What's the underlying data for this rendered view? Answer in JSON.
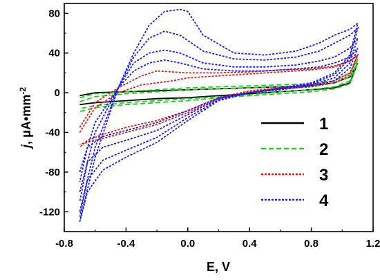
{
  "chart_data": {
    "type": "line",
    "title": "",
    "xlabel": "E, V",
    "ylabel_parts": {
      "italic": "j",
      "rest": ", μA•mm",
      "sup": "-2"
    },
    "xlim": [
      -0.8,
      1.2
    ],
    "ylim": [
      -140,
      90
    ],
    "x_ticks": [
      "-0.8",
      "-0.4",
      "0.0",
      "0.4",
      "0.8",
      "1.2"
    ],
    "x_tick_values": [
      -0.8,
      -0.4,
      0.0,
      0.4,
      0.8,
      1.2
    ],
    "y_ticks": [
      "80",
      "40",
      "0",
      "-40",
      "-80",
      "-120"
    ],
    "y_tick_values": [
      80,
      40,
      0,
      -40,
      -80,
      -120
    ],
    "grid": false,
    "legend_position": "bottom-right",
    "series": [
      {
        "name": "1",
        "color": "#000000",
        "dash": "solid",
        "cycles": [
          {
            "anodic": [
              [
                -0.7,
                -3
              ],
              [
                -0.6,
                0
              ],
              [
                -0.4,
                1
              ],
              [
                -0.2,
                2
              ],
              [
                0.0,
                3
              ],
              [
                0.2,
                4
              ],
              [
                0.4,
                5
              ],
              [
                0.6,
                6
              ],
              [
                0.8,
                7
              ],
              [
                0.95,
                10
              ],
              [
                1.05,
                16
              ],
              [
                1.1,
                30
              ]
            ],
            "cathodic": [
              [
                1.1,
                30
              ],
              [
                1.05,
                10
              ],
              [
                0.95,
                5
              ],
              [
                0.8,
                3
              ],
              [
                0.6,
                1
              ],
              [
                0.4,
                -1
              ],
              [
                0.2,
                -3
              ],
              [
                0.0,
                -5
              ],
              [
                -0.2,
                -6
              ],
              [
                -0.4,
                -8
              ],
              [
                -0.6,
                -10
              ],
              [
                -0.7,
                -12
              ]
            ]
          }
        ]
      },
      {
        "name": "2",
        "color": "#22cc22",
        "dash": "dashed",
        "cycles": [
          {
            "anodic": [
              [
                -0.7,
                -5
              ],
              [
                -0.6,
                -1
              ],
              [
                -0.4,
                1
              ],
              [
                -0.2,
                3
              ],
              [
                0.0,
                5
              ],
              [
                0.2,
                6
              ],
              [
                0.4,
                7
              ],
              [
                0.6,
                8
              ],
              [
                0.8,
                9
              ],
              [
                0.95,
                12
              ],
              [
                1.05,
                20
              ],
              [
                1.1,
                34
              ]
            ],
            "cathodic": [
              [
                1.1,
                34
              ],
              [
                1.05,
                12
              ],
              [
                0.95,
                6
              ],
              [
                0.8,
                3
              ],
              [
                0.6,
                1
              ],
              [
                0.4,
                -2
              ],
              [
                0.2,
                -4
              ],
              [
                0.0,
                -6
              ],
              [
                -0.2,
                -8
              ],
              [
                -0.4,
                -10
              ],
              [
                -0.6,
                -13
              ],
              [
                -0.7,
                -16
              ]
            ]
          },
          {
            "anodic": [
              [
                -0.7,
                -9
              ],
              [
                -0.6,
                -4
              ],
              [
                -0.4,
                -1
              ],
              [
                -0.2,
                1
              ],
              [
                0.0,
                3
              ],
              [
                0.2,
                4
              ],
              [
                0.4,
                5
              ],
              [
                0.6,
                6
              ],
              [
                0.8,
                7
              ],
              [
                0.95,
                10
              ],
              [
                1.05,
                16
              ],
              [
                1.1,
                30
              ]
            ],
            "cathodic": [
              [
                1.1,
                30
              ],
              [
                1.05,
                9
              ],
              [
                0.95,
                4
              ],
              [
                0.8,
                1
              ],
              [
                0.6,
                -1
              ],
              [
                0.4,
                -3
              ],
              [
                0.2,
                -5
              ],
              [
                0.0,
                -8
              ],
              [
                -0.2,
                -10
              ],
              [
                -0.4,
                -12
              ],
              [
                -0.6,
                -15
              ],
              [
                -0.7,
                -19
              ]
            ]
          }
        ]
      },
      {
        "name": "3",
        "color": "#dd1a1a",
        "dash": "dotted",
        "cycles": [
          {
            "anodic": [
              [
                -0.7,
                -40
              ],
              [
                -0.6,
                -15
              ],
              [
                -0.45,
                0
              ],
              [
                -0.3,
                8
              ],
              [
                -0.2,
                10
              ],
              [
                -0.1,
                12
              ],
              [
                0.0,
                15
              ],
              [
                0.2,
                17
              ],
              [
                0.4,
                19
              ],
              [
                0.6,
                21
              ],
              [
                0.8,
                23
              ],
              [
                0.95,
                26
              ],
              [
                1.05,
                32
              ],
              [
                1.1,
                38
              ]
            ],
            "cathodic": [
              [
                1.1,
                38
              ],
              [
                1.05,
                20
              ],
              [
                0.95,
                12
              ],
              [
                0.8,
                8
              ],
              [
                0.6,
                5
              ],
              [
                0.4,
                2
              ],
              [
                0.2,
                -5
              ],
              [
                0.0,
                -18
              ],
              [
                -0.2,
                -28
              ],
              [
                -0.4,
                -35
              ],
              [
                -0.55,
                -42
              ],
              [
                -0.65,
                -48
              ],
              [
                -0.7,
                -55
              ]
            ]
          },
          {
            "anodic": [
              [
                -0.7,
                -35
              ],
              [
                -0.6,
                -10
              ],
              [
                -0.45,
                5
              ],
              [
                -0.3,
                17
              ],
              [
                -0.2,
                22
              ],
              [
                -0.1,
                21
              ],
              [
                0.0,
                20
              ],
              [
                0.2,
                20
              ],
              [
                0.4,
                21
              ],
              [
                0.6,
                23
              ],
              [
                0.8,
                24
              ],
              [
                0.95,
                27
              ],
              [
                1.05,
                32
              ],
              [
                1.1,
                38
              ]
            ],
            "cathodic": [
              [
                1.1,
                38
              ],
              [
                1.05,
                18
              ],
              [
                0.95,
                10
              ],
              [
                0.8,
                6
              ],
              [
                0.6,
                4
              ],
              [
                0.4,
                1
              ],
              [
                0.2,
                -6
              ],
              [
                0.0,
                -20
              ],
              [
                -0.2,
                -32
              ],
              [
                -0.4,
                -40
              ],
              [
                -0.55,
                -46
              ],
              [
                -0.65,
                -50
              ],
              [
                -0.7,
                -52
              ]
            ]
          }
        ]
      },
      {
        "name": "4",
        "color": "#1a1aee",
        "dash": "dotted",
        "cycles": [
          {
            "anodic": [
              [
                -0.7,
                -80
              ],
              [
                -0.6,
                -30
              ],
              [
                -0.45,
                5
              ],
              [
                -0.35,
                22
              ],
              [
                -0.25,
                30
              ],
              [
                -0.15,
                33
              ],
              [
                -0.05,
                30
              ],
              [
                0.1,
                24
              ],
              [
                0.3,
                22
              ],
              [
                0.5,
                22
              ],
              [
                0.7,
                24
              ],
              [
                0.85,
                26
              ],
              [
                0.95,
                30
              ],
              [
                1.05,
                36
              ],
              [
                1.1,
                45
              ]
            ],
            "cathodic": [
              [
                1.1,
                45
              ],
              [
                1.05,
                25
              ],
              [
                0.95,
                12
              ],
              [
                0.8,
                7
              ],
              [
                0.6,
                3
              ],
              [
                0.4,
                0
              ],
              [
                0.2,
                -5
              ],
              [
                0.0,
                -18
              ],
              [
                -0.2,
                -30
              ],
              [
                -0.4,
                -38
              ],
              [
                -0.55,
                -44
              ],
              [
                -0.65,
                -55
              ],
              [
                -0.7,
                -90
              ]
            ]
          },
          {
            "anodic": [
              [
                -0.7,
                -100
              ],
              [
                -0.6,
                -40
              ],
              [
                -0.45,
                5
              ],
              [
                -0.35,
                30
              ],
              [
                -0.25,
                40
              ],
              [
                -0.15,
                43
              ],
              [
                -0.05,
                40
              ],
              [
                0.1,
                30
              ],
              [
                0.3,
                26
              ],
              [
                0.5,
                26
              ],
              [
                0.7,
                28
              ],
              [
                0.85,
                32
              ],
              [
                0.95,
                36
              ],
              [
                1.05,
                45
              ],
              [
                1.1,
                55
              ]
            ],
            "cathodic": [
              [
                1.1,
                55
              ],
              [
                1.05,
                30
              ],
              [
                0.95,
                15
              ],
              [
                0.8,
                8
              ],
              [
                0.6,
                4
              ],
              [
                0.4,
                0
              ],
              [
                0.2,
                -6
              ],
              [
                0.0,
                -22
              ],
              [
                -0.2,
                -38
              ],
              [
                -0.4,
                -48
              ],
              [
                -0.55,
                -55
              ],
              [
                -0.65,
                -70
              ],
              [
                -0.7,
                -110
              ]
            ]
          },
          {
            "anodic": [
              [
                -0.7,
                -120
              ],
              [
                -0.6,
                -55
              ],
              [
                -0.45,
                5
              ],
              [
                -0.35,
                36
              ],
              [
                -0.25,
                55
              ],
              [
                -0.15,
                62
              ],
              [
                -0.05,
                58
              ],
              [
                0.1,
                42
              ],
              [
                0.3,
                34
              ],
              [
                0.5,
                33
              ],
              [
                0.7,
                36
              ],
              [
                0.85,
                42
              ],
              [
                0.95,
                50
              ],
              [
                1.05,
                58
              ],
              [
                1.1,
                65
              ]
            ],
            "cathodic": [
              [
                1.1,
                65
              ],
              [
                1.05,
                35
              ],
              [
                0.95,
                18
              ],
              [
                0.8,
                9
              ],
              [
                0.6,
                4
              ],
              [
                0.4,
                0
              ],
              [
                0.2,
                -7
              ],
              [
                0.0,
                -25
              ],
              [
                -0.2,
                -45
              ],
              [
                -0.4,
                -58
              ],
              [
                -0.55,
                -68
              ],
              [
                -0.65,
                -88
              ],
              [
                -0.7,
                -125
              ]
            ]
          },
          {
            "anodic": [
              [
                -0.7,
                -130
              ],
              [
                -0.6,
                -65
              ],
              [
                -0.45,
                5
              ],
              [
                -0.35,
                40
              ],
              [
                -0.25,
                68
              ],
              [
                -0.15,
                82
              ],
              [
                -0.05,
                84
              ],
              [
                0.0,
                82
              ],
              [
                0.1,
                58
              ],
              [
                0.3,
                40
              ],
              [
                0.5,
                38
              ],
              [
                0.7,
                42
              ],
              [
                0.85,
                50
              ],
              [
                0.95,
                58
              ],
              [
                1.05,
                64
              ],
              [
                1.1,
                70
              ]
            ],
            "cathodic": [
              [
                1.1,
                70
              ],
              [
                1.05,
                38
              ],
              [
                0.95,
                20
              ],
              [
                0.8,
                10
              ],
              [
                0.6,
                5
              ],
              [
                0.4,
                0
              ],
              [
                0.2,
                -8
              ],
              [
                0.0,
                -28
              ],
              [
                -0.2,
                -50
              ],
              [
                -0.4,
                -65
              ],
              [
                -0.55,
                -78
              ],
              [
                -0.65,
                -100
              ],
              [
                -0.7,
                -130
              ]
            ]
          }
        ]
      }
    ]
  }
}
